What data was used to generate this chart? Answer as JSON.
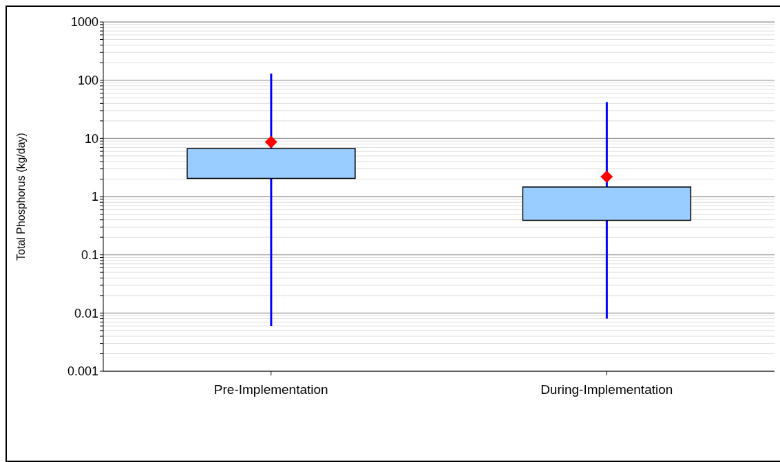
{
  "chart_data": {
    "type": "box",
    "ylabel": "Total Phosphorus  (kg/day)",
    "categories": [
      "Pre-Implementation",
      "During-Implementation"
    ],
    "series": [
      {
        "color": "#99ccff",
        "boxes": [
          {
            "low": 0.006,
            "q1": 2.05,
            "q3": 6.7,
            "high": 130,
            "mean": 8.7
          },
          {
            "low": 0.008,
            "q1": 0.39,
            "q3": 1.46,
            "high": 42,
            "mean": 2.2
          }
        ]
      }
    ],
    "marker": "diamond",
    "log": "y",
    "ylim": [
      0.001,
      1000
    ],
    "yticks": [
      0.001,
      {
        "value": 0.002,
        "label": null
      },
      {
        "value": 0.003,
        "label": null
      },
      {
        "value": 0.004,
        "label": null
      },
      {
        "value": 0.005,
        "label": null
      },
      {
        "value": 0.006,
        "label": null
      },
      {
        "value": 0.007,
        "label": null
      },
      {
        "value": 0.008,
        "label": null
      },
      {
        "value": 0.009,
        "label": null
      },
      0.01,
      {
        "value": 0.02,
        "label": null
      },
      {
        "value": 0.03,
        "label": null
      },
      {
        "value": 0.04,
        "label": null
      },
      {
        "value": 0.05,
        "label": null
      },
      {
        "value": 0.06,
        "label": null
      },
      {
        "value": 0.07,
        "label": null
      },
      {
        "value": 0.08,
        "label": null
      },
      {
        "value": 0.09,
        "label": null
      },
      0.1,
      {
        "value": 0.2,
        "label": null
      },
      {
        "value": 0.3,
        "label": null
      },
      {
        "value": 0.4,
        "label": null
      },
      {
        "value": 0.5,
        "label": null
      },
      {
        "value": 0.6,
        "label": null
      },
      {
        "value": 0.7,
        "label": null
      },
      {
        "value": 0.8,
        "label": null
      },
      {
        "value": 0.9,
        "label": null
      },
      1,
      {
        "value": 2,
        "label": null
      },
      {
        "value": 3,
        "label": null
      },
      {
        "value": 4,
        "label": null
      },
      {
        "value": 5,
        "label": null
      },
      {
        "value": 6,
        "label": null
      },
      {
        "value": 7,
        "label": null
      },
      {
        "value": 8,
        "label": null
      },
      {
        "value": 9,
        "label": null
      },
      10,
      {
        "value": 20,
        "label": null
      },
      {
        "value": 30,
        "label": null
      },
      {
        "value": 40,
        "label": null
      },
      {
        "value": 50,
        "label": null
      },
      {
        "value": 60,
        "label": null
      },
      {
        "value": 70,
        "label": null
      },
      {
        "value": 80,
        "label": null
      },
      {
        "value": 90,
        "label": null
      },
      100,
      {
        "value": 200,
        "label": null
      },
      {
        "value": 300,
        "label": null
      },
      {
        "value": 400,
        "label": null
      },
      {
        "value": 500,
        "label": null
      },
      {
        "value": 600,
        "label": null
      },
      {
        "value": 700,
        "label": null
      },
      {
        "value": 800,
        "label": null
      },
      {
        "value": 900,
        "label": null
      },
      1000
    ],
    "grid": "y"
  }
}
